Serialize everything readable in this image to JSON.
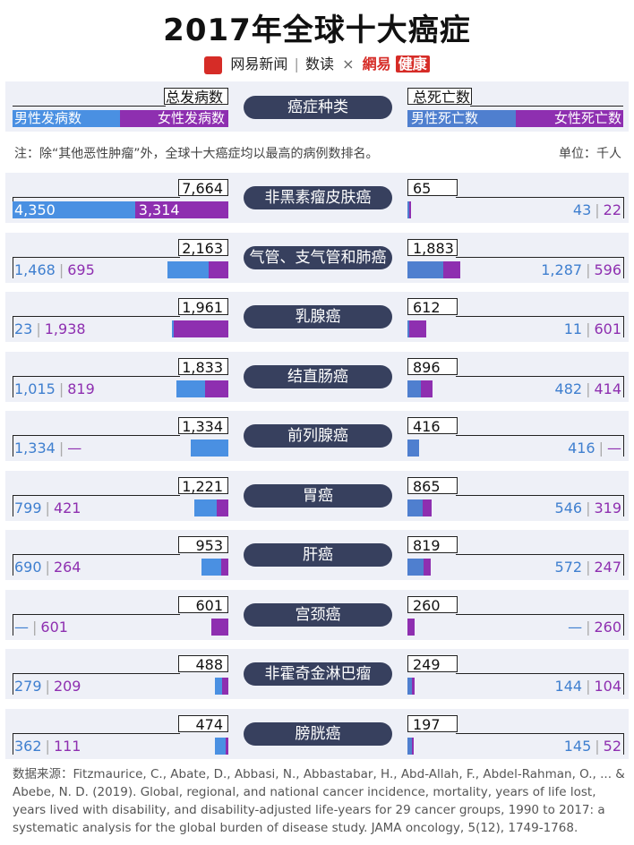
{
  "title": "2017年全球十大癌症",
  "brand": {
    "logo_text": "網易",
    "publisher": "网易新闻",
    "column": "数读",
    "times": "×",
    "partner": "網易",
    "partner_tag": "健康"
  },
  "legend": {
    "incidence_total": "总发病数",
    "incidence_male": "男性发病数",
    "incidence_female": "女性发病数",
    "category": "癌症种类",
    "death_total": "总死亡数",
    "death_male": "男性死亡数",
    "death_female": "女性死亡数"
  },
  "note": "注：除“其他恶性肿瘤”外，全球十大癌症均以最高的病例数排名。",
  "unit": "单位：千人",
  "chart_data": {
    "type": "bar",
    "unit": "千人",
    "categories": [
      "非黑素瘤皮肤癌",
      "气管、支气管和肺癌",
      "乳腺癌",
      "结直肠癌",
      "前列腺癌",
      "胃癌",
      "肝癌",
      "宫颈癌",
      "非霍奇金淋巴瘤",
      "膀胱癌"
    ],
    "rows": [
      {
        "cancer": "非黑素瘤皮肤癌",
        "inc_total": "7,664",
        "inc_male": "4,350",
        "inc_female": "3,314",
        "death_total": "65",
        "death_male": "43",
        "death_female": "22"
      },
      {
        "cancer": "气管、支气管和肺癌",
        "inc_total": "2,163",
        "inc_male": "1,468",
        "inc_female": "695",
        "death_total": "1,883",
        "death_male": "1,287",
        "death_female": "596"
      },
      {
        "cancer": "乳腺癌",
        "inc_total": "1,961",
        "inc_male": "23",
        "inc_female": "1,938",
        "death_total": "612",
        "death_male": "11",
        "death_female": "601"
      },
      {
        "cancer": "结直肠癌",
        "inc_total": "1,833",
        "inc_male": "1,015",
        "inc_female": "819",
        "death_total": "896",
        "death_male": "482",
        "death_female": "414"
      },
      {
        "cancer": "前列腺癌",
        "inc_total": "1,334",
        "inc_male": "1,334",
        "inc_female": "—",
        "death_total": "416",
        "death_male": "416",
        "death_female": "—"
      },
      {
        "cancer": "胃癌",
        "inc_total": "1,221",
        "inc_male": "799",
        "inc_female": "421",
        "death_total": "865",
        "death_male": "546",
        "death_female": "319"
      },
      {
        "cancer": "肝癌",
        "inc_total": "953",
        "inc_male": "690",
        "inc_female": "264",
        "death_total": "819",
        "death_male": "572",
        "death_female": "247"
      },
      {
        "cancer": "宫颈癌",
        "inc_total": "601",
        "inc_male": "—",
        "inc_female": "601",
        "death_total": "260",
        "death_male": "—",
        "death_female": "260"
      },
      {
        "cancer": "非霍奇金淋巴瘤",
        "inc_total": "488",
        "inc_male": "279",
        "inc_female": "209",
        "death_total": "249",
        "death_male": "144",
        "death_female": "104"
      },
      {
        "cancer": "膀胱癌",
        "inc_total": "474",
        "inc_male": "362",
        "inc_female": "111",
        "death_total": "197",
        "death_male": "145",
        "death_female": "52"
      }
    ]
  },
  "source": "数据来源：Fitzmaurice, C., Abate, D., Abbasi, N., Abbastabar, H., Abd-Allah, F., Abdel-Rahman, O., ... & Abebe, N. D. (2019). Global, regional, and national cancer incidence, mortality, years of life lost, years lived with disability, and disability-adjusted life-years for 29 cancer groups, 1990 to 2017: a systematic analysis for the global burden of disease study. JAMA oncology, 5(12), 1749-1768."
}
